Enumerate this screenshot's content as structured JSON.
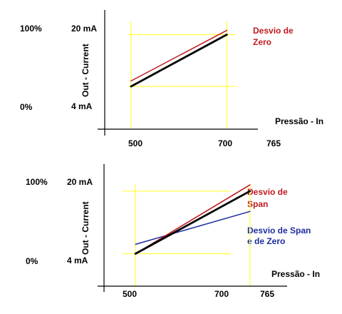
{
  "colors": {
    "reference": "#000000",
    "zero_shift": "#c0191e",
    "span_shift": "#c0191e",
    "span_zero_shift": "#1d2c9e",
    "guides": "#ffff3c"
  },
  "chart_data": [
    {
      "type": "line",
      "percent_labels": [
        "100%",
        "0%"
      ],
      "current_labels": [
        "20 mA",
        "4 mA"
      ],
      "ylabel": "Out - Current",
      "xlabel": "Pressão - In",
      "x_ticks": [
        "500",
        "700",
        "765"
      ],
      "legend": [
        {
          "text": "Desvio de Zero",
          "lines": [
            "Desvio de",
            "Zero"
          ],
          "color": "#c0191e"
        }
      ],
      "xlim": [
        445,
        765
      ],
      "ylim": [
        -9.2,
        27.6
      ],
      "guides": {
        "x": [
          500,
          700
        ],
        "y": [
          4,
          20
        ]
      },
      "series": [
        {
          "role": "reference",
          "color": "#000000",
          "points": [
            [
              500,
              4
            ],
            [
              700,
              20
            ]
          ]
        },
        {
          "role": "zero_shift",
          "color": "#c0191e",
          "points": [
            [
              500,
              5.7
            ],
            [
              700,
              21.3
            ]
          ]
        }
      ]
    },
    {
      "type": "line",
      "percent_labels": [
        "100%",
        "0%"
      ],
      "current_labels": [
        "20 mA",
        "4 mA"
      ],
      "ylabel": "Out - Current",
      "xlabel": "Pressão - In",
      "x_ticks": [
        "500",
        "700",
        "765"
      ],
      "legend": [
        {
          "text": "Desvio de Span",
          "lines": [
            "Desvio de",
            "Span"
          ],
          "color": "#c0191e"
        },
        {
          "text": "Desvio de Span e de Zero",
          "lines": [
            "Desvio de Span",
            "e de Zero"
          ],
          "color": "#1d2c9e"
        }
      ],
      "xlim": [
        445,
        765
      ],
      "ylim": [
        -4.3,
        26.9
      ],
      "guides": {
        "x": [
          500,
          700
        ],
        "y": [
          4,
          20
        ]
      },
      "series": [
        {
          "role": "reference",
          "color": "#000000",
          "points": [
            [
              500,
              4
            ],
            [
              700,
              20
            ]
          ]
        },
        {
          "role": "span_shift",
          "color": "#c0191e",
          "points": [
            [
              500,
              4
            ],
            [
              700,
              21.6
            ]
          ]
        },
        {
          "role": "span_zero_shift",
          "color": "#1d2c9e",
          "points": [
            [
              500,
              6.4
            ],
            [
              700,
              14.8
            ]
          ]
        }
      ]
    }
  ]
}
